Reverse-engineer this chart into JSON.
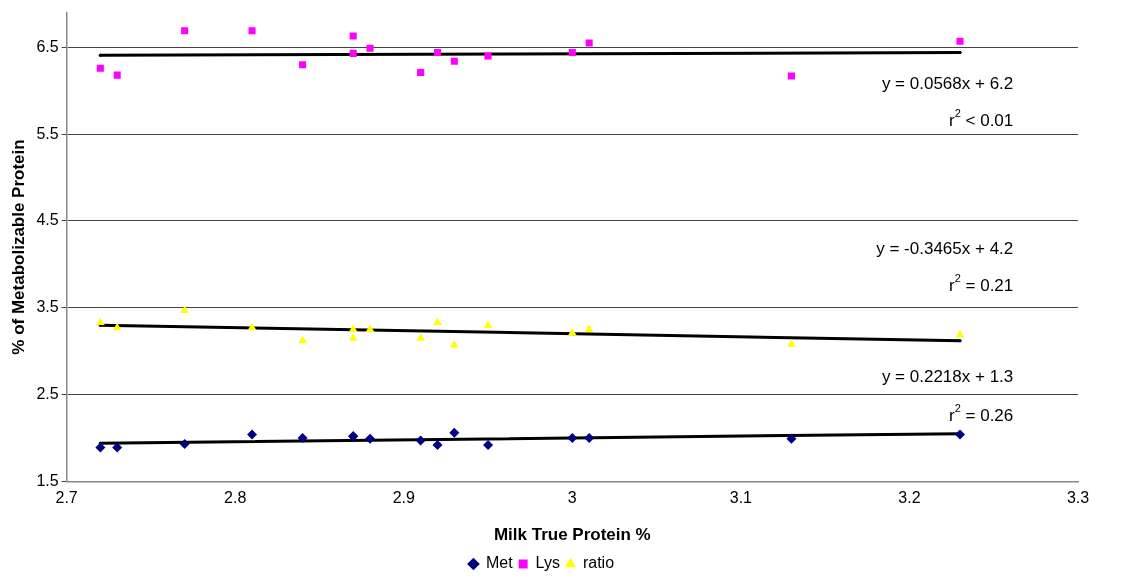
{
  "chart_data": {
    "type": "scatter",
    "xlabel": "Milk True Protein %",
    "ylabel": "% of Metabolizable Protein",
    "x": [
      2.72,
      2.73,
      2.77,
      2.81,
      2.84,
      2.87,
      2.87,
      2.88,
      2.91,
      2.92,
      2.93,
      2.95,
      3.0,
      3.01,
      3.13,
      3.23
    ],
    "series": [
      {
        "name": "Met",
        "color": "#000080",
        "marker": "diamond",
        "values": [
          1.89,
          1.89,
          1.93,
          2.04,
          2.0,
          2.02,
          2.02,
          1.99,
          1.97,
          1.92,
          2.06,
          1.92,
          2.0,
          2.0,
          1.99,
          2.04
        ]
      },
      {
        "name": "Lys",
        "color": "#ff00ff",
        "marker": "square",
        "values": [
          6.26,
          6.18,
          6.69,
          6.69,
          6.3,
          6.63,
          6.43,
          6.49,
          6.21,
          6.44,
          6.34,
          6.4,
          6.44,
          6.55,
          6.17,
          6.57
        ]
      },
      {
        "name": "ratio",
        "color": "#ffff00",
        "marker": "triangle",
        "values": [
          3.33,
          3.27,
          3.47,
          3.27,
          3.12,
          3.25,
          3.15,
          3.25,
          3.15,
          3.33,
          3.07,
          3.3,
          3.21,
          3.25,
          3.08,
          3.19
        ]
      },
      {
        "type": "line",
        "color": "#000000",
        "values": [
          1.94,
          null,
          null,
          null,
          null,
          null,
          null,
          null,
          null,
          null,
          null,
          null,
          null,
          null,
          null,
          2.05
        ]
      },
      {
        "type": "line",
        "color": "#000000",
        "values": [
          6.41,
          null,
          null,
          null,
          null,
          null,
          null,
          null,
          null,
          null,
          null,
          null,
          null,
          null,
          null,
          6.44
        ]
      },
      {
        "type": "line",
        "color": "#000000",
        "values": [
          3.3,
          null,
          null,
          null,
          null,
          null,
          null,
          null,
          null,
          null,
          null,
          null,
          null,
          null,
          null,
          3.12
        ]
      }
    ],
    "xlim": [
      2.7,
      3.3
    ],
    "xticks": [
      2.7,
      2.8,
      2.9,
      3,
      3.1,
      3.2,
      3.3
    ],
    "ylim": [
      1.5,
      6.9
    ],
    "yticks": [
      1.5,
      2.5,
      3.5,
      4.5,
      5.5,
      6.5
    ],
    "grid": "y",
    "legend": "bottom",
    "annotations": [
      "y = 0.0568x + 6.2",
      "r$^{2}$ < 0.01",
      "y = -0.3465x + 4.2",
      "r$^{2}$ = 0.21",
      "y = 0.2218x + 1.3",
      "r$^{2}$ = 0.26"
    ]
  }
}
